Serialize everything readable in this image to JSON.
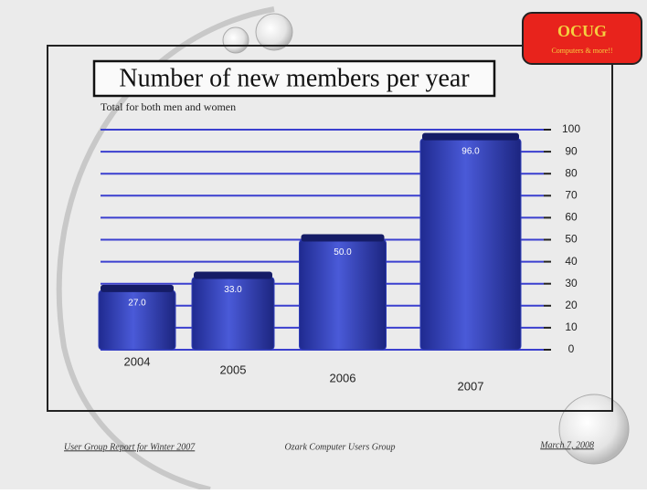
{
  "logo": {
    "name": "OCUG",
    "tagline": "Computers & more!!"
  },
  "footer": {
    "left": "User Group Report for Winter 2007",
    "center": "Ozark Computer Users Group",
    "right": "March 7, 2008"
  },
  "chart_data": {
    "type": "bar",
    "title": "Number of new members per year",
    "subtitle": "Total for both men and women",
    "categories": [
      "2004",
      "2005",
      "2006",
      "2007"
    ],
    "values": [
      27,
      33,
      50,
      96
    ],
    "value_labels": [
      "27.0",
      "33.0",
      "50.0",
      "96.0"
    ],
    "color": "#2f3db8",
    "grid_color": "#3b3fcf",
    "ylim": [
      0,
      100
    ],
    "yticks": [
      0,
      10,
      20,
      30,
      40,
      50,
      60,
      70,
      80,
      90,
      100
    ],
    "grid": true
  }
}
